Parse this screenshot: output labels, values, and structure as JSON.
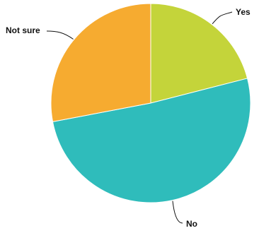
{
  "chart_data": {
    "type": "pie",
    "title": "",
    "start_angle_deg": 0,
    "direction": "clockwise",
    "slices": [
      {
        "label": "Yes",
        "value": 21,
        "color": "#c4d43a"
      },
      {
        "label": "No",
        "value": 51,
        "color": "#2fbcbb"
      },
      {
        "label": "Not sure",
        "value": 28,
        "color": "#f6ab30"
      }
    ]
  }
}
